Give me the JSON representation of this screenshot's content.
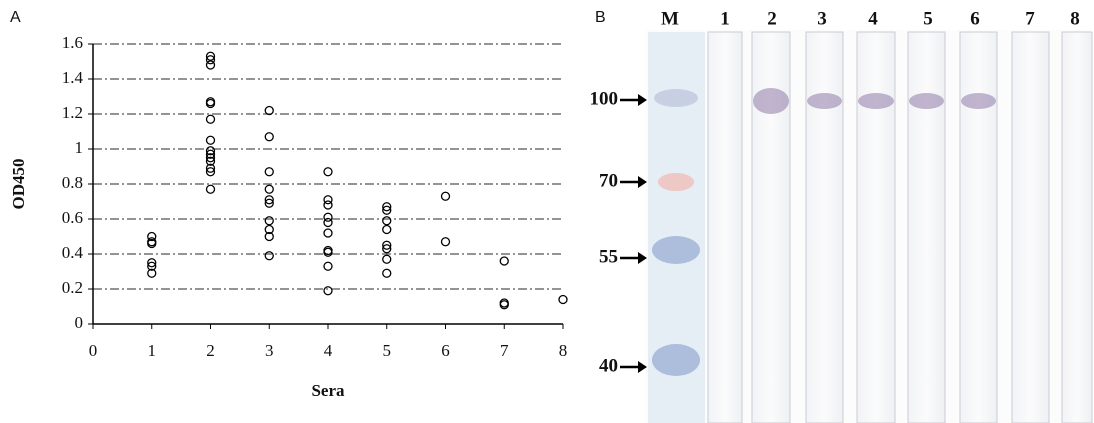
{
  "chart_data": {
    "type": "scatter",
    "panel_label": "A",
    "x_label": "Sera",
    "y_label": "OD450",
    "xlim": [
      0,
      8
    ],
    "xticks": [
      0,
      1,
      2,
      3,
      4,
      5,
      6,
      7,
      8
    ],
    "ylim": [
      0,
      1.6
    ],
    "yticks": [
      0,
      0.2,
      0.4,
      0.6,
      0.8,
      1,
      1.2,
      1.4,
      1.6
    ],
    "grid": true,
    "series": [
      {
        "color": "#000000",
        "x": [
          1,
          1,
          1,
          1,
          1,
          1,
          2,
          2,
          2,
          2,
          2,
          2,
          2,
          2,
          2,
          2,
          2,
          2,
          2,
          2,
          3,
          3,
          3,
          3,
          3,
          3,
          3,
          3,
          3,
          3,
          4,
          4,
          4,
          4,
          4,
          4,
          4,
          4,
          4,
          4,
          5,
          5,
          5,
          5,
          5,
          5,
          5,
          5,
          6,
          6,
          7,
          7,
          7,
          8
        ],
        "values": [
          0.5,
          0.47,
          0.46,
          0.35,
          0.33,
          0.29,
          1.53,
          1.51,
          1.48,
          1.27,
          1.26,
          1.17,
          1.05,
          0.99,
          0.97,
          0.95,
          0.93,
          0.89,
          0.87,
          0.77,
          1.22,
          1.07,
          0.87,
          0.77,
          0.71,
          0.69,
          0.59,
          0.54,
          0.5,
          0.39,
          0.87,
          0.71,
          0.68,
          0.61,
          0.58,
          0.52,
          0.42,
          0.41,
          0.33,
          0.19,
          0.67,
          0.65,
          0.59,
          0.54,
          0.45,
          0.43,
          0.37,
          0.29,
          0.73,
          0.47,
          0.36,
          0.12,
          0.11,
          0.14
        ]
      }
    ]
  },
  "blot": {
    "panel_label": "B",
    "lanes": [
      "M",
      "1",
      "2",
      "3",
      "4",
      "5",
      "6",
      "7",
      "8"
    ],
    "markers": [
      "100",
      "70",
      "55",
      "40"
    ]
  }
}
